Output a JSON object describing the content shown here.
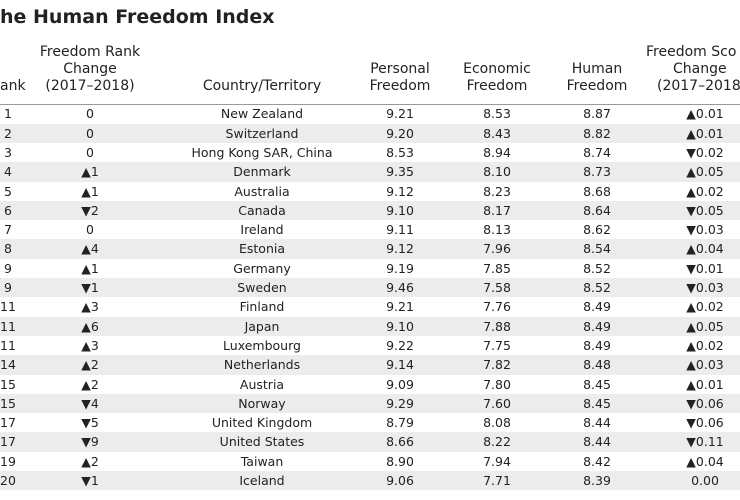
{
  "header": {
    "title": "he Human Freedom Index"
  },
  "table": {
    "columns": [
      [
        "ank"
      ],
      [
        "Freedom Rank",
        "Change",
        "(2017–2018)"
      ],
      [
        "Country/Territory"
      ],
      [
        "Personal",
        "Freedom"
      ],
      [
        "Economic",
        "Freedom"
      ],
      [
        "Human",
        "Freedom"
      ],
      [
        "Freedom Sco",
        "Change",
        "(2017–2018"
      ]
    ],
    "rows": [
      [
        "1",
        "0",
        "New Zealand",
        "9.21",
        "8.53",
        "8.87",
        "▲0.01"
      ],
      [
        "2",
        "0",
        "Switzerland",
        "9.20",
        "8.43",
        "8.82",
        "▲0.01"
      ],
      [
        "3",
        "0",
        "Hong Kong SAR, China",
        "8.53",
        "8.94",
        "8.74",
        "▼0.02"
      ],
      [
        "4",
        "▲1",
        "Denmark",
        "9.35",
        "8.10",
        "8.73",
        "▲0.05"
      ],
      [
        "5",
        "▲1",
        "Australia",
        "9.12",
        "8.23",
        "8.68",
        "▲0.02"
      ],
      [
        "6",
        "▼2",
        "Canada",
        "9.10",
        "8.17",
        "8.64",
        "▼0.05"
      ],
      [
        "7",
        "0",
        "Ireland",
        "9.11",
        "8.13",
        "8.62",
        "▼0.03"
      ],
      [
        "8",
        "▲4",
        "Estonia",
        "9.12",
        "7.96",
        "8.54",
        "▲0.04"
      ],
      [
        "9",
        "▲1",
        "Germany",
        "9.19",
        "7.85",
        "8.52",
        "▼0.01"
      ],
      [
        "9",
        "▼1",
        "Sweden",
        "9.46",
        "7.58",
        "8.52",
        "▼0.03"
      ],
      [
        "11",
        "▲3",
        "Finland",
        "9.21",
        "7.76",
        "8.49",
        "▲0.02"
      ],
      [
        "11",
        "▲6",
        "Japan",
        "9.10",
        "7.88",
        "8.49",
        "▲0.05"
      ],
      [
        "11",
        "▲3",
        "Luxembourg",
        "9.22",
        "7.75",
        "8.49",
        "▲0.02"
      ],
      [
        "14",
        "▲2",
        "Netherlands",
        "9.14",
        "7.82",
        "8.48",
        "▲0.03"
      ],
      [
        "15",
        "▲2",
        "Austria",
        "9.09",
        "7.80",
        "8.45",
        "▲0.01"
      ],
      [
        "15",
        "▼4",
        "Norway",
        "9.29",
        "7.60",
        "8.45",
        "▼0.06"
      ],
      [
        "17",
        "▼5",
        "United Kingdom",
        "8.79",
        "8.08",
        "8.44",
        "▼0.06"
      ],
      [
        "17",
        "▼9",
        "United States",
        "8.66",
        "8.22",
        "8.44",
        "▼0.11"
      ],
      [
        "19",
        "▲2",
        "Taiwan",
        "8.90",
        "7.94",
        "8.42",
        "▲0.04"
      ],
      [
        "20",
        "▼1",
        "Iceland",
        "9.06",
        "7.71",
        "8.39",
        "0.00"
      ]
    ]
  }
}
